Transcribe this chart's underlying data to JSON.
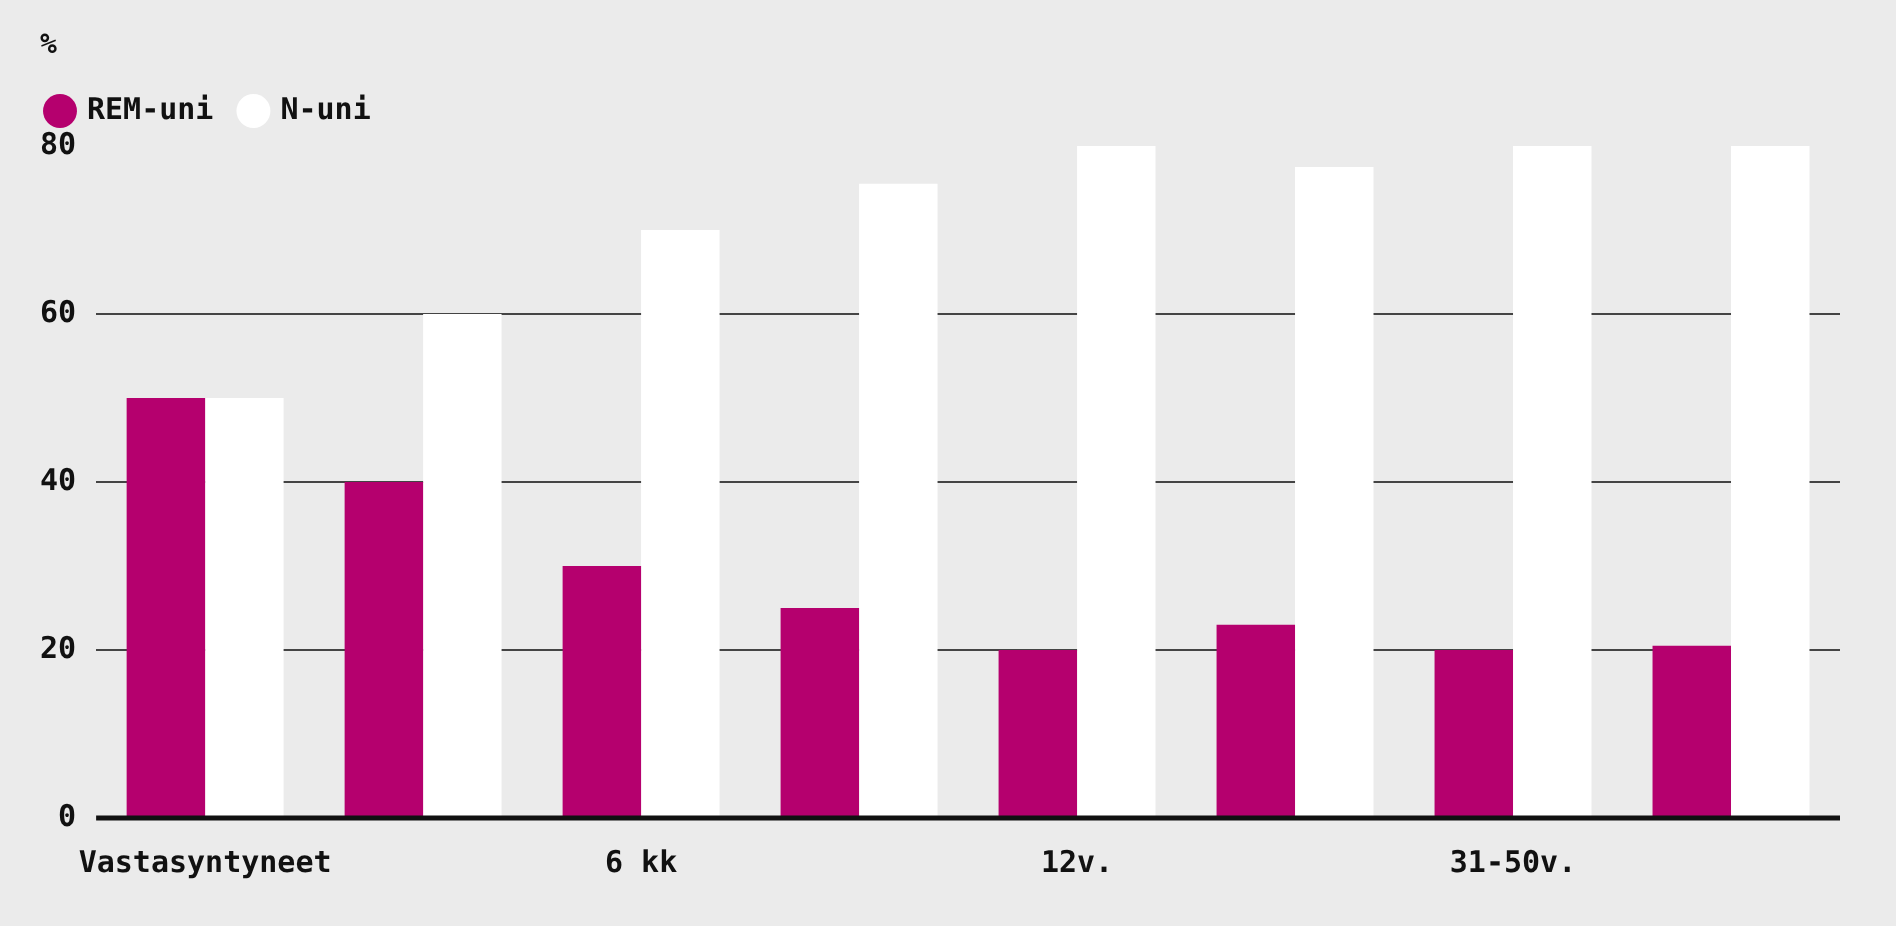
{
  "chart_data": {
    "type": "bar",
    "ylabel": "%",
    "categories": [
      "Vastasyntyneet",
      null,
      "6 kk",
      null,
      "12v.",
      null,
      "31-50v.",
      null
    ],
    "series": [
      {
        "name": "REM-uni",
        "color": "#b5006e",
        "values": [
          50,
          40,
          30,
          25,
          20,
          23,
          20,
          20.5
        ]
      },
      {
        "name": "N-uni",
        "color": "#ffffff",
        "values": [
          50,
          60,
          70,
          75.5,
          80,
          77.5,
          80,
          80
        ]
      }
    ],
    "ylim": [
      0,
      80
    ],
    "yticks": [
      0,
      20,
      40,
      60,
      80
    ],
    "grid": "y",
    "legend": "top left"
  }
}
